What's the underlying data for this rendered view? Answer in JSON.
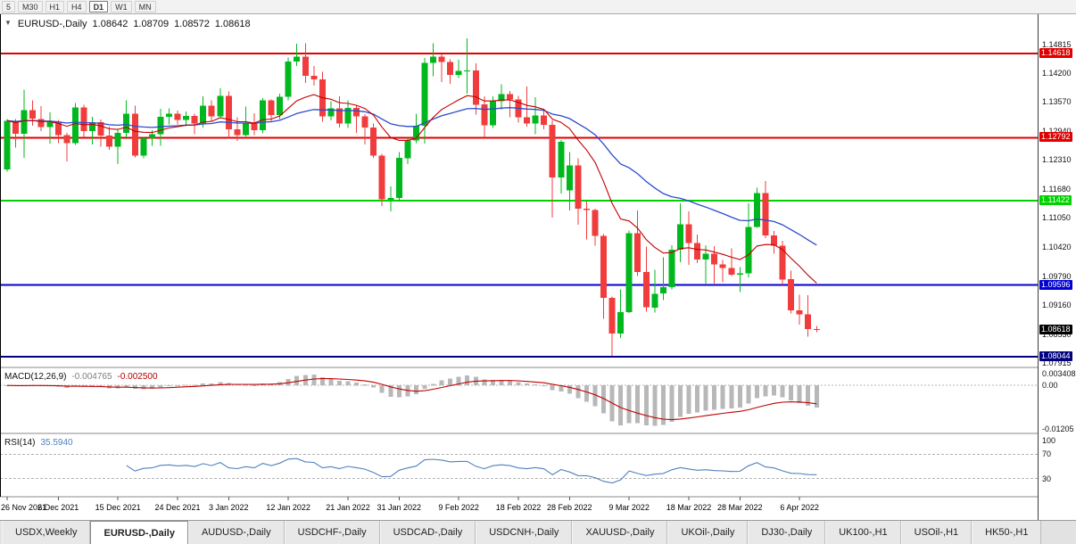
{
  "toolbar": {
    "timeframes": [
      "5",
      "M30",
      "H1",
      "H4",
      "D1",
      "W1",
      "MN"
    ],
    "active": "D1"
  },
  "chart_header": {
    "dropdown_glyph": "▼",
    "symbol": "EURUSD-,Daily",
    "open": "1.08642",
    "high": "1.08709",
    "low": "1.08572",
    "close": "1.08618"
  },
  "macd_panel": {
    "title": "MACD(12,26,9)",
    "main_value": "-0.004765",
    "signal_value": "-0.002500"
  },
  "rsi_panel": {
    "title": "RSI(14)",
    "value": "35.5940"
  },
  "tabs": [
    {
      "label": "USDX,Weekly",
      "active": false
    },
    {
      "label": "EURUSD-,Daily",
      "active": true
    },
    {
      "label": "AUDUSD-,Daily",
      "active": false
    },
    {
      "label": "USDCHF-,Daily",
      "active": false
    },
    {
      "label": "USDCAD-,Daily",
      "active": false
    },
    {
      "label": "USDCNH-,Daily",
      "active": false
    },
    {
      "label": "XAUUSD-,Daily",
      "active": false
    },
    {
      "label": "UKOil-,Daily",
      "active": false
    },
    {
      "label": "DJ30-,Daily",
      "active": false
    },
    {
      "label": "UK100-,H1",
      "active": false
    },
    {
      "label": "USOil-,H1",
      "active": false
    },
    {
      "label": "HK50-,H1",
      "active": false
    }
  ],
  "chart_data": {
    "type": "candlestick",
    "symbol": "EURUSD",
    "timeframe": "Daily",
    "colors": {
      "up": "#00b81e",
      "down": "#f03c3c",
      "ma_fast": "#c00000",
      "ma_slow": "#2c4ccc",
      "macd_hist": "#b8b8b8",
      "macd_signal": "#c00000",
      "rsi": "#4f81bd",
      "hline_red": "#e00000",
      "hline_green": "#00d200",
      "hline_blue": "#0000d2",
      "hline_navy": "#000080",
      "current_badge": "#000000"
    },
    "y_axis": {
      "max": 1.1539,
      "min": 1.0781,
      "grid_labels": [
        {
          "price": 1.14815,
          "label": "1.14815"
        },
        {
          "price": 1.142,
          "label": "1.14200"
        },
        {
          "price": 1.1357,
          "label": "1.13570"
        },
        {
          "price": 1.1294,
          "label": "1.12940"
        },
        {
          "price": 1.1231,
          "label": "1.12310"
        },
        {
          "price": 1.1168,
          "label": "1.11680"
        },
        {
          "price": 1.1105,
          "label": "1.11050"
        },
        {
          "price": 1.1042,
          "label": "1.10420"
        },
        {
          "price": 1.0979,
          "label": "1.09790"
        },
        {
          "price": 1.0916,
          "label": "1.09160"
        },
        {
          "price": 1.0853,
          "label": "1.08530"
        },
        {
          "price": 1.07915,
          "label": "1.07915"
        }
      ]
    },
    "hlines": [
      {
        "price": 1.14618,
        "label": "1.14618",
        "color": "#e00000"
      },
      {
        "price": 1.12792,
        "label": "1.12792",
        "color": "#e00000"
      },
      {
        "price": 1.11422,
        "label": "1.11422",
        "color": "#00d200"
      },
      {
        "price": 1.09596,
        "label": "1.09596",
        "color": "#0000d2"
      },
      {
        "price": 1.08044,
        "label": "1.08044",
        "color": "#000080"
      }
    ],
    "current_price": {
      "value": 1.08618,
      "label": "1.08618",
      "color": "#000000"
    },
    "overlays": [
      {
        "name": "ema-fast",
        "period": 13,
        "color": "#c00000"
      },
      {
        "name": "ema-slow",
        "period": 34,
        "color": "#2c4ccc"
      }
    ],
    "macd": {
      "fast": 12,
      "slow": 26,
      "signal": 9,
      "axis_max": 0.004,
      "axis_min": -0.0125,
      "scale_labels": {
        "top": "0.003408",
        "zero": "0.00",
        "bottom": "-0.01205"
      }
    },
    "rsi": {
      "period": 14,
      "levels": [
        100,
        70,
        30
      ],
      "scale_labels": [
        "100",
        "70",
        "30"
      ]
    },
    "x_ticks": [
      {
        "i": 0,
        "label": "26 Nov 2021"
      },
      {
        "i": 6,
        "label": "6 Dec 2021"
      },
      {
        "i": 13,
        "label": "15 Dec 2021"
      },
      {
        "i": 20,
        "label": "24 Dec 2021"
      },
      {
        "i": 26,
        "label": "3 Jan 2022"
      },
      {
        "i": 33,
        "label": "12 Jan 2022"
      },
      {
        "i": 40,
        "label": "21 Jan 2022"
      },
      {
        "i": 46,
        "label": "31 Jan 2022"
      },
      {
        "i": 53,
        "label": "9 Feb 2022"
      },
      {
        "i": 60,
        "label": "18 Feb 2022"
      },
      {
        "i": 66,
        "label": "28 Feb 2022"
      },
      {
        "i": 73,
        "label": "9 Mar 2022"
      },
      {
        "i": 80,
        "label": "18 Mar 2022"
      },
      {
        "i": 86,
        "label": "28 Mar 2022"
      },
      {
        "i": 93,
        "label": "6 Apr 2022"
      }
    ],
    "ohlc": [
      [
        1.121,
        1.132,
        1.1205,
        1.1316
      ],
      [
        1.1316,
        1.132,
        1.1258,
        1.1288
      ],
      [
        1.1288,
        1.1383,
        1.1235,
        1.1339
      ],
      [
        1.1339,
        1.136,
        1.1305,
        1.132
      ],
      [
        1.132,
        1.1348,
        1.1293,
        1.1302
      ],
      [
        1.1302,
        1.1334,
        1.1266,
        1.1313
      ],
      [
        1.1313,
        1.1318,
        1.1267,
        1.1285
      ],
      [
        1.1285,
        1.129,
        1.1228,
        1.1267
      ],
      [
        1.1267,
        1.1354,
        1.1263,
        1.1345
      ],
      [
        1.1345,
        1.135,
        1.128,
        1.1293
      ],
      [
        1.1293,
        1.1324,
        1.1264,
        1.1313
      ],
      [
        1.1313,
        1.1319,
        1.126,
        1.1284
      ],
      [
        1.1284,
        1.1303,
        1.1253,
        1.126
      ],
      [
        1.126,
        1.1298,
        1.1222,
        1.129
      ],
      [
        1.129,
        1.136,
        1.128,
        1.1331
      ],
      [
        1.1331,
        1.1349,
        1.1236,
        1.124
      ],
      [
        1.124,
        1.128,
        1.1234,
        1.1278
      ],
      [
        1.1278,
        1.1295,
        1.1262,
        1.1287
      ],
      [
        1.1287,
        1.1342,
        1.1262,
        1.1324
      ],
      [
        1.1324,
        1.1343,
        1.1308,
        1.1331
      ],
      [
        1.1331,
        1.1338,
        1.1308,
        1.1318
      ],
      [
        1.1318,
        1.1336,
        1.1304,
        1.1326
      ],
      [
        1.1326,
        1.1331,
        1.1287,
        1.131
      ],
      [
        1.131,
        1.1369,
        1.1301,
        1.1349
      ],
      [
        1.1349,
        1.136,
        1.1315,
        1.1325
      ],
      [
        1.1325,
        1.1386,
        1.1321,
        1.137
      ],
      [
        1.137,
        1.1379,
        1.1279,
        1.1297
      ],
      [
        1.1297,
        1.1323,
        1.1272,
        1.1285
      ],
      [
        1.1285,
        1.1347,
        1.1282,
        1.1312
      ],
      [
        1.1312,
        1.1332,
        1.1285,
        1.1295
      ],
      [
        1.1295,
        1.1365,
        1.1289,
        1.136
      ],
      [
        1.136,
        1.1362,
        1.1314,
        1.1328
      ],
      [
        1.1328,
        1.1375,
        1.132,
        1.1368
      ],
      [
        1.1368,
        1.1453,
        1.136,
        1.1444
      ],
      [
        1.1444,
        1.1483,
        1.1435,
        1.1455
      ],
      [
        1.1455,
        1.1484,
        1.1398,
        1.1413
      ],
      [
        1.1413,
        1.1435,
        1.1392,
        1.1406
      ],
      [
        1.1406,
        1.1422,
        1.1314,
        1.1325
      ],
      [
        1.1325,
        1.1358,
        1.1317,
        1.1343
      ],
      [
        1.1343,
        1.1369,
        1.1301,
        1.131
      ],
      [
        1.131,
        1.136,
        1.13,
        1.1344
      ],
      [
        1.1344,
        1.1349,
        1.129,
        1.1325
      ],
      [
        1.1325,
        1.133,
        1.1264,
        1.1301
      ],
      [
        1.1301,
        1.131,
        1.1235,
        1.124
      ],
      [
        1.124,
        1.1244,
        1.1131,
        1.1145
      ],
      [
        1.1145,
        1.1174,
        1.1119,
        1.1148
      ],
      [
        1.1148,
        1.1248,
        1.1141,
        1.1235
      ],
      [
        1.1235,
        1.1279,
        1.1222,
        1.1273
      ],
      [
        1.1273,
        1.1331,
        1.1267,
        1.1305
      ],
      [
        1.1305,
        1.1452,
        1.1266,
        1.1441
      ],
      [
        1.1441,
        1.1484,
        1.1412,
        1.1455
      ],
      [
        1.1455,
        1.146,
        1.14,
        1.1443
      ],
      [
        1.1443,
        1.1449,
        1.1396,
        1.1415
      ],
      [
        1.1415,
        1.1448,
        1.1408,
        1.1424
      ],
      [
        1.1424,
        1.1495,
        1.1375,
        1.1425
      ],
      [
        1.1425,
        1.144,
        1.1329,
        1.1351
      ],
      [
        1.1351,
        1.1369,
        1.1279,
        1.1306
      ],
      [
        1.1306,
        1.1369,
        1.13,
        1.1358
      ],
      [
        1.1358,
        1.1395,
        1.134,
        1.1374
      ],
      [
        1.1374,
        1.138,
        1.1323,
        1.1362
      ],
      [
        1.1362,
        1.137,
        1.1312,
        1.1323
      ],
      [
        1.1323,
        1.139,
        1.1303,
        1.131
      ],
      [
        1.131,
        1.1367,
        1.1287,
        1.1327
      ],
      [
        1.1327,
        1.1342,
        1.1297,
        1.1307
      ],
      [
        1.1307,
        1.1317,
        1.1106,
        1.1193
      ],
      [
        1.1193,
        1.1274,
        1.1158,
        1.127
      ],
      [
        1.1165,
        1.1248,
        1.1121,
        1.1219
      ],
      [
        1.1219,
        1.1234,
        1.109,
        1.1125
      ],
      [
        1.1125,
        1.1141,
        1.1058,
        1.1122
      ],
      [
        1.1122,
        1.1125,
        1.1045,
        1.1066
      ],
      [
        1.1066,
        1.107,
        1.0886,
        1.0932
      ],
      [
        1.0932,
        1.0935,
        1.0806,
        1.0854
      ],
      [
        1.0854,
        1.095,
        1.0845,
        1.0901
      ],
      [
        1.0901,
        1.1078,
        1.0899,
        1.1072
      ],
      [
        1.1072,
        1.1121,
        1.0979,
        1.0988
      ],
      [
        1.0988,
        1.1043,
        1.0902,
        1.0911
      ],
      [
        1.0911,
        1.0993,
        1.09,
        1.0941
      ],
      [
        1.0941,
        1.102,
        1.0927,
        1.0955
      ],
      [
        1.0955,
        1.1046,
        1.095,
        1.1036
      ],
      [
        1.1036,
        1.1137,
        1.1009,
        1.1091
      ],
      [
        1.1091,
        1.1119,
        1.1003,
        1.1051
      ],
      [
        1.1051,
        1.1069,
        1.1007,
        1.1015
      ],
      [
        1.1015,
        1.1046,
        1.0963,
        1.1028
      ],
      [
        1.1028,
        1.1044,
        1.0963,
        1.1004
      ],
      [
        1.1004,
        1.1014,
        1.0966,
        1.0997
      ],
      [
        1.0997,
        1.1039,
        1.0979,
        1.0982
      ],
      [
        1.0982,
        1.0999,
        1.0944,
        1.0985
      ],
      [
        1.0985,
        1.1137,
        1.0976,
        1.1086
      ],
      [
        1.1086,
        1.1171,
        1.1084,
        1.1159
      ],
      [
        1.1159,
        1.1185,
        1.1061,
        1.1067
      ],
      [
        1.1067,
        1.1077,
        1.1028,
        1.1045
      ],
      [
        1.1045,
        1.1056,
        1.096,
        1.0972
      ],
      [
        1.0972,
        1.0991,
        1.0898,
        1.0905
      ],
      [
        1.0905,
        1.0939,
        1.0874,
        1.0896
      ],
      [
        1.0896,
        1.0938,
        1.0848,
        1.0864
      ],
      [
        1.08642,
        1.08709,
        1.08572,
        1.08618
      ]
    ]
  }
}
